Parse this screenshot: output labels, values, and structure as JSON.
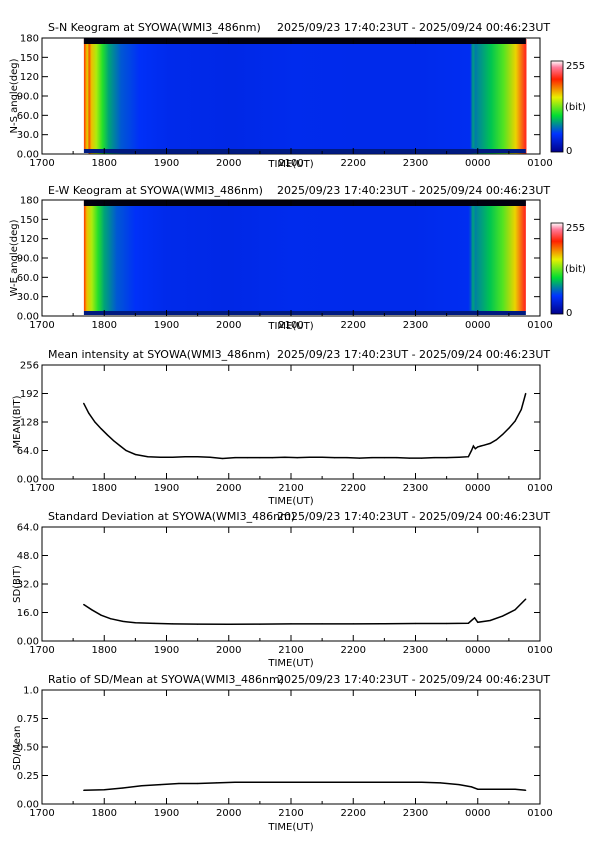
{
  "figure": {
    "station": "SYOWA",
    "time_range": "2025/09/23 17:40:23UT - 2025/09/24 00:46:23UT"
  },
  "chart_data": [
    {
      "type": "heatmap",
      "title": "S-N Keogram at SYOWA(WMI3_486nm)",
      "time_range": "2025/09/23 17:40:23UT - 2025/09/24 00:46:23UT",
      "xlabel": "TIME(UT)",
      "ylabel": "N-S angle(deg)",
      "x_ticks": [
        "1700",
        "1800",
        "1900",
        "2000",
        "2100",
        "2200",
        "2300",
        "0000",
        "0100"
      ],
      "y_ticks": [
        "0.00",
        "30.0",
        "60.0",
        "90.0",
        "120",
        "150",
        "180"
      ],
      "xlim_hours": [
        17.0,
        25.0
      ],
      "ylim": [
        0,
        180
      ],
      "data_start_hour": 17.673,
      "data_end_hour": 24.773,
      "colorbar": {
        "min_label": "0",
        "max_label": "255",
        "unit_label": "(bit)"
      },
      "intensity_profile_hours": [
        17.67,
        17.72,
        17.8,
        17.9,
        18.0,
        18.2,
        18.5,
        19.0,
        20.0,
        21.0,
        22.0,
        23.0,
        23.5,
        23.85,
        23.92,
        24.0,
        24.2,
        24.4,
        24.6,
        24.75
      ],
      "intensity_profile_bit": [
        200,
        165,
        140,
        110,
        85,
        62,
        48,
        42,
        40,
        43,
        42,
        42,
        44,
        45,
        70,
        78,
        95,
        120,
        160,
        210
      ]
    },
    {
      "type": "heatmap",
      "title": "E-W Keogram at SYOWA(WMI3_486nm)",
      "time_range": "2025/09/23 17:40:23UT - 2025/09/24 00:46:23UT",
      "xlabel": "TIME(UT)",
      "ylabel": "W-E angle(deg)",
      "x_ticks": [
        "1700",
        "1800",
        "1900",
        "2000",
        "2100",
        "2200",
        "2300",
        "0000",
        "0100"
      ],
      "y_ticks": [
        "0.00",
        "30.0",
        "60.0",
        "90.0",
        "120",
        "150",
        "180"
      ],
      "xlim_hours": [
        17.0,
        25.0
      ],
      "ylim": [
        0,
        180
      ],
      "data_start_hour": 17.673,
      "data_end_hour": 24.773,
      "colorbar": {
        "min_label": "0",
        "max_label": "255",
        "unit_label": "(bit)"
      },
      "intensity_profile_hours": [
        17.67,
        17.72,
        17.8,
        17.9,
        18.0,
        18.2,
        18.5,
        19.0,
        20.0,
        21.0,
        22.0,
        23.0,
        23.5,
        23.85,
        23.92,
        24.0,
        24.2,
        24.4,
        24.6,
        24.75
      ],
      "intensity_profile_bit": [
        200,
        165,
        140,
        110,
        85,
        62,
        48,
        42,
        40,
        43,
        42,
        42,
        44,
        45,
        70,
        78,
        95,
        120,
        160,
        210
      ]
    },
    {
      "type": "line",
      "title": "Mean intensity at SYOWA(WMI3_486nm)",
      "time_range": "2025/09/23 17:40:23UT - 2025/09/24 00:46:23UT",
      "xlabel": "TIME(UT)",
      "ylabel": "MEAN(BIT)",
      "x_ticks": [
        "1700",
        "1800",
        "1900",
        "2000",
        "2100",
        "2200",
        "2300",
        "0000",
        "0100"
      ],
      "y_ticks": [
        "0.00",
        "64.0",
        "128",
        "192",
        "256"
      ],
      "xlim_hours": [
        17.0,
        25.0
      ],
      "ylim": [
        0,
        256
      ],
      "x_hours": [
        17.67,
        17.75,
        17.85,
        17.95,
        18.05,
        18.15,
        18.25,
        18.35,
        18.5,
        18.7,
        18.9,
        19.1,
        19.3,
        19.5,
        19.7,
        19.9,
        20.1,
        20.3,
        20.5,
        20.7,
        20.9,
        21.1,
        21.3,
        21.5,
        21.7,
        21.9,
        22.1,
        22.3,
        22.5,
        22.7,
        22.9,
        23.1,
        23.3,
        23.5,
        23.7,
        23.85,
        23.9,
        23.93,
        23.96,
        24.0,
        24.05,
        24.1,
        24.2,
        24.3,
        24.4,
        24.5,
        24.6,
        24.7,
        24.77
      ],
      "values": [
        170,
        148,
        128,
        113,
        99,
        86,
        75,
        64,
        55,
        50,
        49,
        49,
        50,
        50,
        49,
        46,
        48,
        48,
        48,
        48,
        49,
        48,
        49,
        49,
        48,
        48,
        47,
        48,
        48,
        48,
        47,
        47,
        48,
        48,
        49,
        50,
        64,
        74,
        68,
        72,
        74,
        76,
        80,
        88,
        100,
        114,
        130,
        156,
        192
      ]
    },
    {
      "type": "line",
      "title": "Standard Deviation at SYOWA(WMI3_486nm)",
      "time_range": "2025/09/23 17:40:23UT - 2025/09/24 00:46:23UT",
      "xlabel": "TIME(UT)",
      "ylabel": "SD(BIT)",
      "x_ticks": [
        "1700",
        "1800",
        "1900",
        "2000",
        "2100",
        "2200",
        "2300",
        "0000",
        "0100"
      ],
      "y_ticks": [
        "0.00",
        "16.0",
        "32.0",
        "48.0",
        "64.0"
      ],
      "xlim_hours": [
        17.0,
        25.0
      ],
      "ylim": [
        0,
        64
      ],
      "x_hours": [
        17.67,
        17.8,
        17.95,
        18.1,
        18.3,
        18.5,
        18.8,
        19.1,
        19.5,
        20.0,
        20.5,
        21.0,
        21.5,
        22.0,
        22.5,
        23.0,
        23.5,
        23.85,
        23.9,
        23.95,
        24.0,
        24.2,
        24.4,
        24.6,
        24.77
      ],
      "values": [
        20.5,
        17.5,
        14.5,
        12.5,
        11.0,
        10.2,
        9.9,
        9.6,
        9.5,
        9.4,
        9.5,
        9.6,
        9.6,
        9.6,
        9.7,
        9.8,
        9.8,
        10.0,
        11.5,
        13.0,
        10.5,
        11.5,
        14.0,
        17.5,
        23.5
      ]
    },
    {
      "type": "line",
      "title": "Ratio of SD/Mean at SYOWA(WMI3_486nm)",
      "time_range": "2025/09/23 17:40:23UT - 2025/09/24 00:46:23UT",
      "xlabel": "TIME(UT)",
      "ylabel": "SD/Mean",
      "x_ticks": [
        "1700",
        "1800",
        "1900",
        "2000",
        "2100",
        "2200",
        "2300",
        "0000",
        "0100"
      ],
      "y_ticks": [
        "0.00",
        "0.25",
        "0.50",
        "0.75",
        "1.0"
      ],
      "xlim_hours": [
        17.0,
        25.0
      ],
      "ylim": [
        0,
        1.0
      ],
      "x_hours": [
        17.67,
        18.0,
        18.3,
        18.6,
        18.9,
        19.2,
        19.5,
        19.8,
        20.1,
        20.4,
        20.7,
        21.0,
        21.3,
        21.6,
        21.9,
        22.2,
        22.5,
        22.8,
        23.1,
        23.4,
        23.7,
        23.9,
        24.0,
        24.2,
        24.4,
        24.6,
        24.77
      ],
      "values": [
        0.12,
        0.125,
        0.14,
        0.16,
        0.17,
        0.18,
        0.18,
        0.185,
        0.19,
        0.19,
        0.19,
        0.19,
        0.19,
        0.19,
        0.19,
        0.19,
        0.19,
        0.19,
        0.19,
        0.185,
        0.17,
        0.15,
        0.13,
        0.13,
        0.13,
        0.13,
        0.12
      ]
    }
  ]
}
